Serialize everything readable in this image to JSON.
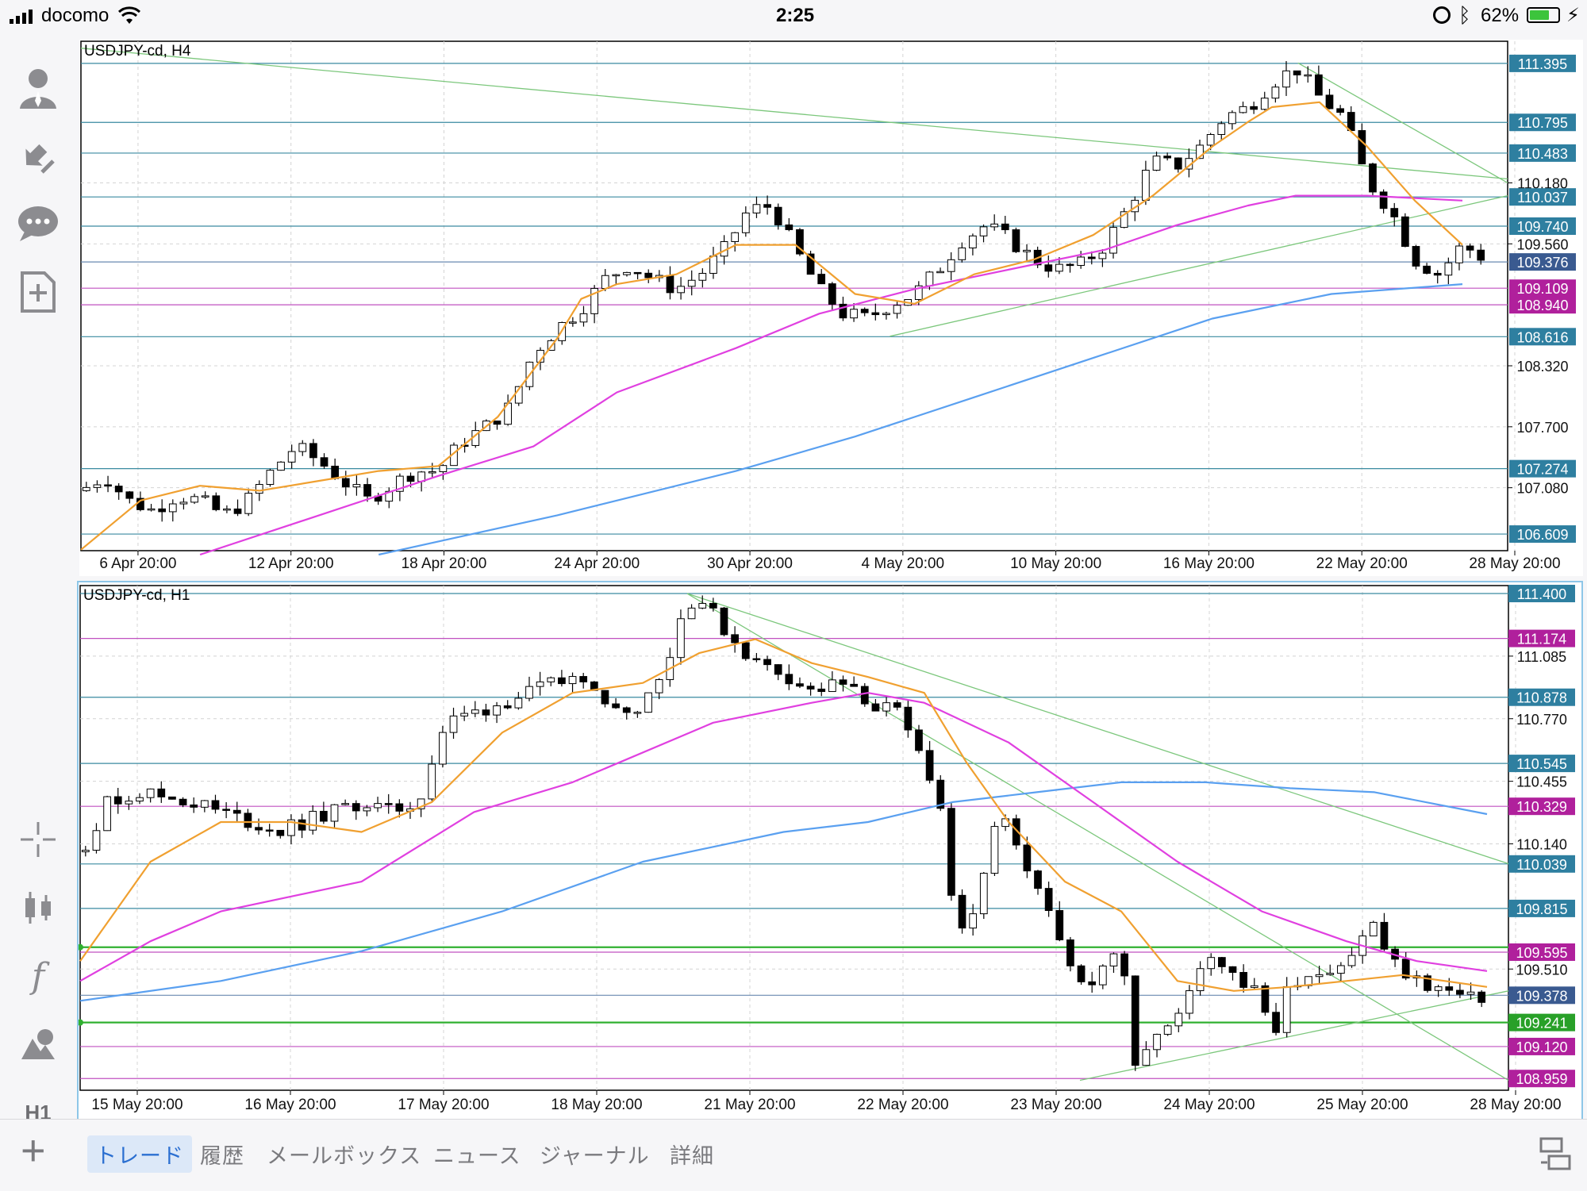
{
  "status_bar": {
    "carrier": "docomo",
    "time": "2:25",
    "battery": "62%"
  },
  "sidebar": {
    "items": [
      {
        "icon": "account-icon"
      },
      {
        "icon": "deposit-withdraw-icon"
      },
      {
        "icon": "chat-icon"
      },
      {
        "icon": "new-order-icon"
      },
      {
        "icon": "crosshair-icon"
      },
      {
        "icon": "candlestick-icon"
      },
      {
        "icon": "indicator-f-icon"
      },
      {
        "icon": "objects-icon"
      },
      {
        "label": "H1"
      }
    ]
  },
  "tabbar": {
    "add_label": "+",
    "tabs": [
      {
        "label": "トレード",
        "active": true
      },
      {
        "label": "履歴",
        "active": false
      },
      {
        "label": "メールボックス",
        "active": false
      },
      {
        "label": "ニュース",
        "active": false
      },
      {
        "label": "ジャーナル",
        "active": false
      },
      {
        "label": "詳細",
        "active": false
      }
    ],
    "layout_icon": "split-view-icon"
  },
  "colors": {
    "bull_candle": "#ffffff",
    "bear_candle": "#000000",
    "ma_short": "#f0a030",
    "ma_mid": "#e040e0",
    "ma_long": "#5aa0f0",
    "trendline": "#7cc77c",
    "hline_blue": "#3a8aa0",
    "hline_magenta": "#c050c0",
    "hline_green": "#30b030",
    "accent": "#2b6fd1"
  },
  "chart_data": [
    {
      "type": "candlestick",
      "title": "USDJPY-cd, H4",
      "x_ticks": [
        "6 Apr 20:00",
        "12 Apr 20:00",
        "18 Apr 20:00",
        "24 Apr 20:00",
        "30 Apr 20:00",
        "4 May 20:00",
        "10 May 20:00",
        "16 May 20:00",
        "22 May 20:00",
        "28 May 20:00"
      ],
      "y_ticks": [
        110.18,
        109.56,
        108.32,
        107.7,
        107.08
      ],
      "ylim": [
        106.44,
        111.62
      ],
      "horizontal_levels": [
        {
          "value": 111.395,
          "color": "blue"
        },
        {
          "value": 110.795,
          "color": "blue"
        },
        {
          "value": 110.483,
          "color": "blue"
        },
        {
          "value": 110.037,
          "color": "blue"
        },
        {
          "value": 109.74,
          "color": "blue"
        },
        {
          "value": 109.376,
          "color": "current"
        },
        {
          "value": 109.109,
          "color": "magenta"
        },
        {
          "value": 108.94,
          "color": "magenta"
        },
        {
          "value": 108.616,
          "color": "blue"
        },
        {
          "value": 107.274,
          "color": "blue"
        },
        {
          "value": 106.609,
          "color": "blue"
        }
      ],
      "trendlines": [
        {
          "x1": 0.0,
          "y1": 111.55,
          "x2": 1.0,
          "y2": 110.22
        },
        {
          "x1": 0.567,
          "y1": 108.62,
          "x2": 1.0,
          "y2": 110.05
        },
        {
          "x1": 0.853,
          "y1": 111.4,
          "x2": 1.0,
          "y2": 110.18
        }
      ],
      "price_path": [
        [
          0.0,
          107.05
        ],
        [
          0.02,
          107.2
        ],
        [
          0.04,
          106.95
        ],
        [
          0.06,
          106.85
        ],
        [
          0.08,
          107.0
        ],
        [
          0.1,
          106.95
        ],
        [
          0.12,
          106.8
        ],
        [
          0.14,
          106.95
        ],
        [
          0.16,
          107.25
        ],
        [
          0.18,
          107.5
        ],
        [
          0.2,
          107.35
        ],
        [
          0.22,
          107.15
        ],
        [
          0.24,
          106.95
        ],
        [
          0.26,
          107.1
        ],
        [
          0.28,
          107.25
        ],
        [
          0.3,
          107.25
        ],
        [
          0.32,
          107.55
        ],
        [
          0.34,
          107.7
        ],
        [
          0.36,
          107.9
        ],
        [
          0.38,
          108.45
        ],
        [
          0.4,
          108.7
        ],
        [
          0.42,
          108.9
        ],
        [
          0.44,
          109.2
        ],
        [
          0.46,
          109.35
        ],
        [
          0.48,
          109.2
        ],
        [
          0.5,
          109.1
        ],
        [
          0.52,
          109.25
        ],
        [
          0.54,
          109.5
        ],
        [
          0.56,
          109.9
        ],
        [
          0.58,
          109.95
        ],
        [
          0.6,
          109.5
        ],
        [
          0.62,
          109.1
        ],
        [
          0.64,
          108.85
        ],
        [
          0.66,
          108.8
        ],
        [
          0.68,
          108.95
        ],
        [
          0.7,
          109.05
        ],
        [
          0.72,
          109.3
        ],
        [
          0.74,
          109.6
        ],
        [
          0.76,
          109.75
        ],
        [
          0.78,
          109.6
        ],
        [
          0.8,
          109.4
        ],
        [
          0.82,
          109.3
        ],
        [
          0.84,
          109.35
        ],
        [
          0.86,
          109.55
        ],
        [
          0.88,
          109.95
        ],
        [
          0.9,
          110.4
        ],
        [
          0.92,
          110.35
        ],
        [
          0.94,
          110.55
        ],
        [
          0.96,
          110.85
        ],
        [
          0.98,
          110.95
        ],
        [
          1.0,
          111.2
        ],
        [
          1.02,
          111.35
        ],
        [
          1.04,
          111.05
        ],
        [
          1.06,
          110.85
        ],
        [
          1.08,
          110.2
        ],
        [
          1.1,
          109.9
        ],
        [
          1.12,
          109.4
        ],
        [
          1.14,
          109.25
        ],
        [
          1.16,
          109.55
        ],
        [
          1.18,
          109.4
        ]
      ],
      "ma_short": [
        [
          0.0,
          106.45
        ],
        [
          0.05,
          106.95
        ],
        [
          0.1,
          107.1
        ],
        [
          0.15,
          107.05
        ],
        [
          0.2,
          107.15
        ],
        [
          0.25,
          107.25
        ],
        [
          0.3,
          107.3
        ],
        [
          0.35,
          107.8
        ],
        [
          0.4,
          108.6
        ],
        [
          0.42,
          109.0
        ],
        [
          0.45,
          109.15
        ],
        [
          0.5,
          109.25
        ],
        [
          0.55,
          109.55
        ],
        [
          0.6,
          109.55
        ],
        [
          0.65,
          109.05
        ],
        [
          0.7,
          108.95
        ],
        [
          0.75,
          109.25
        ],
        [
          0.8,
          109.4
        ],
        [
          0.85,
          109.65
        ],
        [
          0.9,
          110.05
        ],
        [
          0.95,
          110.55
        ],
        [
          0.98,
          110.8
        ],
        [
          1.0,
          110.95
        ],
        [
          1.04,
          111.0
        ],
        [
          1.08,
          110.55
        ],
        [
          1.12,
          110.0
        ],
        [
          1.16,
          109.55
        ]
      ],
      "ma_mid": [
        [
          0.1,
          106.4
        ],
        [
          0.2,
          106.8
        ],
        [
          0.3,
          107.2
        ],
        [
          0.38,
          107.5
        ],
        [
          0.45,
          108.05
        ],
        [
          0.55,
          108.5
        ],
        [
          0.62,
          108.85
        ],
        [
          0.7,
          109.1
        ],
        [
          0.78,
          109.3
        ],
        [
          0.86,
          109.5
        ],
        [
          0.92,
          109.75
        ],
        [
          0.98,
          109.95
        ],
        [
          1.02,
          110.05
        ],
        [
          1.08,
          110.05
        ],
        [
          1.16,
          110.0
        ]
      ],
      "ma_long": [
        [
          0.25,
          106.4
        ],
        [
          0.4,
          106.8
        ],
        [
          0.55,
          107.25
        ],
        [
          0.65,
          107.6
        ],
        [
          0.75,
          108.0
        ],
        [
          0.85,
          108.4
        ],
        [
          0.95,
          108.8
        ],
        [
          1.05,
          109.05
        ],
        [
          1.16,
          109.15
        ]
      ],
      "ma_labels": [],
      "right_labels": [
        "111.395",
        "110.795",
        "110.483",
        "110.180",
        "110.037",
        "109.740",
        "109.560",
        "109.376",
        "109.109",
        "108.940",
        "108.616",
        "108.320",
        "107.700",
        "107.274",
        "107.080",
        "106.609"
      ]
    },
    {
      "type": "candlestick",
      "title": "USDJPY-cd, H1",
      "x_ticks": [
        "15 May 20:00",
        "16 May 20:00",
        "17 May 20:00",
        "18 May 20:00",
        "21 May 20:00",
        "22 May 20:00",
        "23 May 20:00",
        "24 May 20:00",
        "25 May 20:00",
        "28 May 20:00"
      ],
      "y_ticks": [
        111.085,
        110.77,
        110.455,
        110.14,
        109.51
      ],
      "ylim": [
        108.9,
        111.44
      ],
      "horizontal_levels": [
        {
          "value": 111.4,
          "color": "blue"
        },
        {
          "value": 111.174,
          "color": "magenta"
        },
        {
          "value": 110.878,
          "color": "blue"
        },
        {
          "value": 110.545,
          "color": "blue"
        },
        {
          "value": 110.329,
          "color": "magenta"
        },
        {
          "value": 110.039,
          "color": "blue"
        },
        {
          "value": 109.815,
          "color": "blue"
        },
        {
          "value": 109.595,
          "color": "magenta"
        },
        {
          "value": 109.378,
          "color": "current"
        },
        {
          "value": 109.241,
          "color": "green"
        },
        {
          "value": 109.12,
          "color": "magenta"
        },
        {
          "value": 108.959,
          "color": "magenta"
        }
      ],
      "green_levels": [
        109.62,
        109.241
      ],
      "trendlines": [
        {
          "x1": 0.425,
          "y1": 111.4,
          "x2": 1.0,
          "y2": 110.04
        },
        {
          "x1": 0.425,
          "y1": 111.4,
          "x2": 1.0,
          "y2": 108.95
        },
        {
          "x1": 0.7,
          "y1": 108.95,
          "x2": 1.0,
          "y2": 109.4
        }
      ],
      "price_path": [
        [
          0.0,
          110.1
        ],
        [
          0.02,
          110.35
        ],
        [
          0.04,
          110.4
        ],
        [
          0.06,
          110.38
        ],
        [
          0.08,
          110.35
        ],
        [
          0.1,
          110.3
        ],
        [
          0.12,
          110.25
        ],
        [
          0.14,
          110.2
        ],
        [
          0.16,
          110.25
        ],
        [
          0.18,
          110.3
        ],
        [
          0.2,
          110.35
        ],
        [
          0.22,
          110.3
        ],
        [
          0.24,
          110.35
        ],
        [
          0.26,
          110.75
        ],
        [
          0.28,
          110.8
        ],
        [
          0.3,
          110.85
        ],
        [
          0.32,
          110.9
        ],
        [
          0.34,
          110.95
        ],
        [
          0.36,
          111.0
        ],
        [
          0.38,
          110.8
        ],
        [
          0.4,
          110.85
        ],
        [
          0.42,
          111.1
        ],
        [
          0.43,
          111.35
        ],
        [
          0.44,
          111.38
        ],
        [
          0.46,
          111.2
        ],
        [
          0.48,
          111.05
        ],
        [
          0.5,
          111.0
        ],
        [
          0.52,
          110.9
        ],
        [
          0.54,
          110.95
        ],
        [
          0.56,
          110.85
        ],
        [
          0.58,
          110.8
        ],
        [
          0.6,
          110.55
        ],
        [
          0.61,
          110.4
        ],
        [
          0.62,
          109.85
        ],
        [
          0.63,
          109.6
        ],
        [
          0.64,
          109.95
        ],
        [
          0.65,
          110.2
        ],
        [
          0.66,
          110.25
        ],
        [
          0.67,
          110.0
        ],
        [
          0.68,
          109.9
        ],
        [
          0.7,
          109.6
        ],
        [
          0.72,
          109.4
        ],
        [
          0.73,
          109.55
        ],
        [
          0.74,
          109.65
        ],
        [
          0.75,
          109.05
        ],
        [
          0.76,
          109.15
        ],
        [
          0.78,
          109.25
        ],
        [
          0.8,
          109.6
        ],
        [
          0.82,
          109.5
        ],
        [
          0.84,
          109.35
        ],
        [
          0.85,
          109.2
        ],
        [
          0.86,
          109.45
        ],
        [
          0.88,
          109.5
        ],
        [
          0.9,
          109.55
        ],
        [
          0.92,
          109.75
        ],
        [
          0.93,
          109.55
        ],
        [
          0.95,
          109.45
        ],
        [
          0.97,
          109.4
        ],
        [
          0.99,
          109.35
        ],
        [
          1.0,
          109.38
        ]
      ],
      "ma_short": [
        [
          0.0,
          109.55
        ],
        [
          0.05,
          110.05
        ],
        [
          0.1,
          110.25
        ],
        [
          0.15,
          110.25
        ],
        [
          0.2,
          110.2
        ],
        [
          0.25,
          110.35
        ],
        [
          0.3,
          110.7
        ],
        [
          0.35,
          110.9
        ],
        [
          0.4,
          110.95
        ],
        [
          0.44,
          111.1
        ],
        [
          0.48,
          111.17
        ],
        [
          0.52,
          111.05
        ],
        [
          0.56,
          110.98
        ],
        [
          0.6,
          110.9
        ],
        [
          0.63,
          110.55
        ],
        [
          0.66,
          110.25
        ],
        [
          0.7,
          109.95
        ],
        [
          0.74,
          109.8
        ],
        [
          0.78,
          109.45
        ],
        [
          0.82,
          109.4
        ],
        [
          0.86,
          109.42
        ],
        [
          0.9,
          109.45
        ],
        [
          0.94,
          109.48
        ],
        [
          1.0,
          109.42
        ]
      ],
      "ma_mid": [
        [
          0.0,
          109.45
        ],
        [
          0.05,
          109.65
        ],
        [
          0.1,
          109.8
        ],
        [
          0.2,
          109.95
        ],
        [
          0.28,
          110.3
        ],
        [
          0.35,
          110.45
        ],
        [
          0.45,
          110.75
        ],
        [
          0.52,
          110.85
        ],
        [
          0.56,
          110.9
        ],
        [
          0.6,
          110.85
        ],
        [
          0.66,
          110.65
        ],
        [
          0.72,
          110.35
        ],
        [
          0.78,
          110.05
        ],
        [
          0.84,
          109.8
        ],
        [
          0.9,
          109.65
        ],
        [
          0.95,
          109.55
        ],
        [
          1.0,
          109.5
        ]
      ],
      "ma_long": [
        [
          0.0,
          109.35
        ],
        [
          0.1,
          109.45
        ],
        [
          0.2,
          109.6
        ],
        [
          0.3,
          109.8
        ],
        [
          0.4,
          110.05
        ],
        [
          0.5,
          110.2
        ],
        [
          0.56,
          110.25
        ],
        [
          0.62,
          110.35
        ],
        [
          0.68,
          110.4
        ],
        [
          0.74,
          110.45
        ],
        [
          0.8,
          110.45
        ],
        [
          0.86,
          110.42
        ],
        [
          0.92,
          110.4
        ],
        [
          1.0,
          110.29
        ]
      ],
      "right_labels": [
        "111.400",
        "111.174",
        "111.085",
        "110.878",
        "110.770",
        "110.545",
        "110.455",
        "110.329",
        "110.140",
        "110.039",
        "109.815",
        "109.595",
        "109.510",
        "109.378",
        "109.241",
        "109.120",
        "108.959"
      ]
    }
  ]
}
